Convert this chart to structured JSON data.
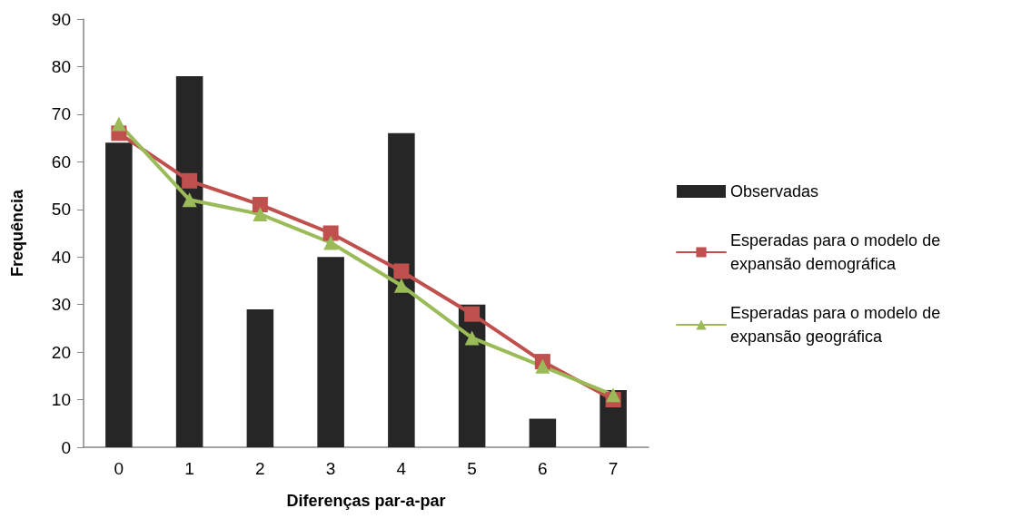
{
  "chart_data": {
    "type": "bar",
    "xlabel": "Diferenças par-a-par",
    "ylabel": "Frequência",
    "categories": [
      "0",
      "1",
      "2",
      "3",
      "4",
      "5",
      "6",
      "7"
    ],
    "series": [
      {
        "name": "Observadas",
        "color": "#262626",
        "values": [
          64,
          78,
          29,
          40,
          66,
          30,
          6,
          12
        ]
      },
      {
        "name": "Esperadas para o modelo de expansão demográfica",
        "type": "line",
        "marker": "square",
        "color": "#c0504d",
        "values": [
          66,
          56,
          51,
          45,
          37,
          28,
          18,
          10
        ]
      },
      {
        "name": "Esperadas para o modelo de expansão geográfica",
        "type": "line",
        "marker": "triangle",
        "color": "#9bbb59",
        "values": [
          68,
          52,
          49,
          43,
          34,
          23,
          17,
          11
        ]
      }
    ],
    "ylim": [
      0,
      90
    ],
    "yticks": [
      0,
      10,
      20,
      30,
      40,
      50,
      60,
      70,
      80,
      90
    ],
    "grid": false,
    "legend": "right"
  }
}
